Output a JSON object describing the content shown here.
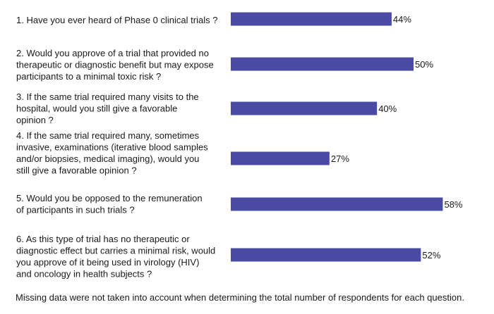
{
  "chart_data": {
    "type": "bar",
    "orientation": "horizontal",
    "categories": [
      [
        "1. Have you ever heard of Phase 0 clinical trials ?"
      ],
      [
        "2. Would you approve of a trial that provided no",
        "therapeutic or diagnostic benefit but may expose",
        "participants to a minimal toxic risk ?"
      ],
      [
        "3. If the same trial required many visits to the",
        "hospital, would you still give a favorable",
        "opinion ?"
      ],
      [
        "4. If the same trial required many, sometimes",
        "invasive, examinations (iterative blood samples",
        "and/or biopsies, medical imaging), would you",
        "still give a favorable opinion ?"
      ],
      [
        "5. Would you be opposed to the remuneration",
        "of participants in such trials ?"
      ],
      [
        "6. As this type of trial has no therapeutic or",
        "diagnostic effect but carries a minimal risk, would",
        "you approve of it being used in virology (HIV)",
        "and oncology in health subjects ?"
      ]
    ],
    "values": [
      44,
      50,
      40,
      27,
      58,
      52
    ],
    "value_labels": [
      "44%",
      "50%",
      "40%",
      "27%",
      "58%",
      "52%"
    ],
    "bar_color": "#4b4ba6",
    "grid": false,
    "legend": "none"
  },
  "footnote": "Missing data were not taken into account when determining the total number of respondents for each question."
}
